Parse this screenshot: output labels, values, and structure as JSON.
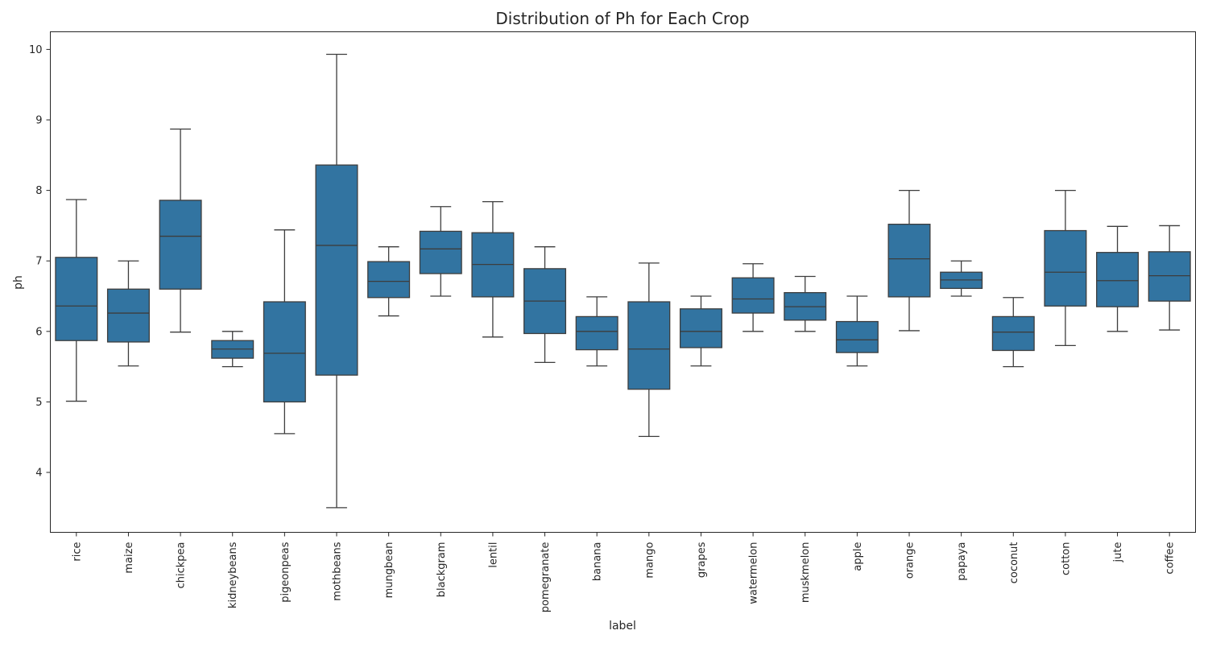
{
  "chart_data": {
    "type": "box",
    "title": "Distribution of Ph for Each Crop",
    "xlabel": "label",
    "ylabel": "ph",
    "ylim": [
      3.15,
      10.25
    ],
    "yticks": [
      4,
      5,
      6,
      7,
      8,
      9,
      10
    ],
    "color": "#3274a1",
    "grid": false,
    "categories": [
      "rice",
      "maize",
      "chickpea",
      "kidneybeans",
      "pigeonpeas",
      "mothbeans",
      "mungbean",
      "blackgram",
      "lentil",
      "pomegranate",
      "banana",
      "mango",
      "grapes",
      "watermelon",
      "muskmelon",
      "apple",
      "orange",
      "papaya",
      "coconut",
      "cotton",
      "jute",
      "coffee"
    ],
    "boxes": [
      {
        "min": 5.01,
        "q1": 5.87,
        "median": 6.36,
        "q3": 7.05,
        "max": 7.87
      },
      {
        "min": 5.51,
        "q1": 5.85,
        "median": 6.26,
        "q3": 6.6,
        "max": 7.0
      },
      {
        "min": 5.99,
        "q1": 6.6,
        "median": 7.35,
        "q3": 7.86,
        "max": 8.87
      },
      {
        "min": 5.5,
        "q1": 5.62,
        "median": 5.75,
        "q3": 5.87,
        "max": 6.0
      },
      {
        "min": 4.55,
        "q1": 5.0,
        "median": 5.69,
        "q3": 6.42,
        "max": 7.44
      },
      {
        "min": 3.5,
        "q1": 5.38,
        "median": 7.22,
        "q3": 8.36,
        "max": 9.93
      },
      {
        "min": 6.22,
        "q1": 6.48,
        "median": 6.71,
        "q3": 6.99,
        "max": 7.2
      },
      {
        "min": 6.5,
        "q1": 6.82,
        "median": 7.17,
        "q3": 7.42,
        "max": 7.77
      },
      {
        "min": 5.92,
        "q1": 6.49,
        "median": 6.95,
        "q3": 7.4,
        "max": 7.84
      },
      {
        "min": 5.56,
        "q1": 5.97,
        "median": 6.43,
        "q3": 6.89,
        "max": 7.2
      },
      {
        "min": 5.51,
        "q1": 5.74,
        "median": 6.0,
        "q3": 6.21,
        "max": 6.49
      },
      {
        "min": 4.51,
        "q1": 5.18,
        "median": 5.75,
        "q3": 6.42,
        "max": 6.97
      },
      {
        "min": 5.51,
        "q1": 5.77,
        "median": 6.0,
        "q3": 6.32,
        "max": 6.5
      },
      {
        "min": 6.0,
        "q1": 6.26,
        "median": 6.46,
        "q3": 6.76,
        "max": 6.96
      },
      {
        "min": 6.0,
        "q1": 6.16,
        "median": 6.35,
        "q3": 6.55,
        "max": 6.78
      },
      {
        "min": 5.51,
        "q1": 5.7,
        "median": 5.88,
        "q3": 6.14,
        "max": 6.5
      },
      {
        "min": 6.01,
        "q1": 6.49,
        "median": 7.03,
        "q3": 7.52,
        "max": 8.0
      },
      {
        "min": 6.5,
        "q1": 6.61,
        "median": 6.73,
        "q3": 6.84,
        "max": 7.0
      },
      {
        "min": 5.5,
        "q1": 5.73,
        "median": 5.99,
        "q3": 6.21,
        "max": 6.48
      },
      {
        "min": 5.8,
        "q1": 6.36,
        "median": 6.84,
        "q3": 7.43,
        "max": 8.0
      },
      {
        "min": 6.0,
        "q1": 6.35,
        "median": 6.72,
        "q3": 7.12,
        "max": 7.49
      },
      {
        "min": 6.02,
        "q1": 6.43,
        "median": 6.79,
        "q3": 7.13,
        "max": 7.5
      }
    ]
  }
}
